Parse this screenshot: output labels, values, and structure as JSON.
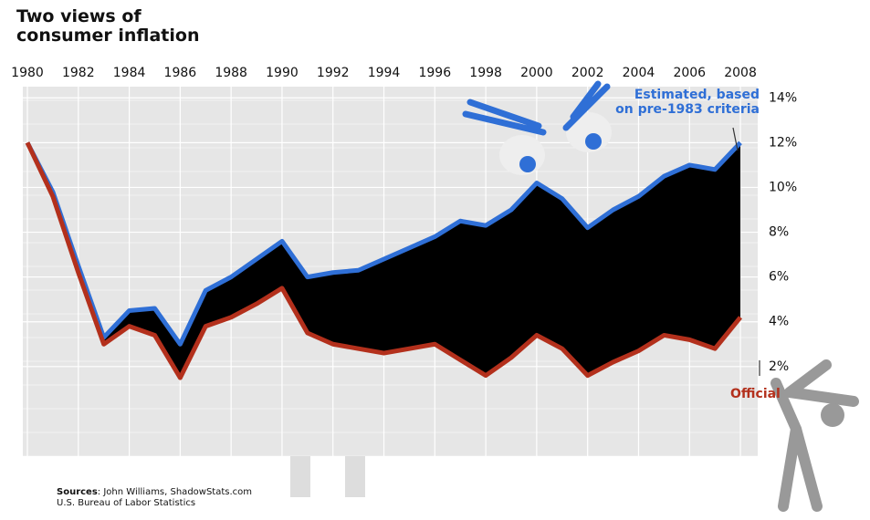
{
  "chart_data": {
    "type": "line",
    "title": "Two views of consumer inflation",
    "x": [
      1980,
      1981,
      1982,
      1983,
      1984,
      1985,
      1986,
      1987,
      1988,
      1989,
      1990,
      1991,
      1992,
      1993,
      1994,
      1995,
      1996,
      1997,
      1998,
      1999,
      2000,
      2001,
      2002,
      2003,
      2004,
      2005,
      2006,
      2007,
      2008
    ],
    "series": [
      {
        "name": "Estimated, based on pre-1983 criteria",
        "color": "#2f6fd6",
        "values": [
          12.0,
          9.8,
          6.5,
          3.3,
          4.5,
          4.6,
          3.0,
          5.4,
          6.0,
          6.8,
          7.6,
          6.0,
          6.2,
          6.3,
          6.8,
          7.3,
          7.8,
          8.5,
          8.3,
          9.0,
          10.2,
          9.5,
          8.2,
          9.0,
          9.6,
          10.5,
          11.0,
          10.8,
          12.0
        ]
      },
      {
        "name": "Official",
        "color": "#b3301c",
        "values": [
          12.0,
          9.6,
          6.2,
          3.0,
          3.8,
          3.4,
          1.5,
          3.8,
          4.2,
          4.8,
          5.5,
          3.5,
          3.0,
          2.8,
          2.6,
          2.8,
          3.0,
          2.3,
          1.6,
          2.4,
          3.4,
          2.8,
          1.6,
          2.2,
          2.7,
          3.4,
          3.2,
          2.8,
          4.2
        ]
      }
    ],
    "fill_between": "#000000",
    "xlim": [
      1980,
      2008.5
    ],
    "xticks": [
      1980,
      1982,
      1984,
      1986,
      1988,
      1990,
      1992,
      1994,
      1996,
      1998,
      2000,
      2002,
      2004,
      2006,
      2008
    ],
    "ylim": [
      -2,
      14.5
    ],
    "yticks": [
      {
        "value": 2,
        "label": "2%"
      },
      {
        "value": 4,
        "label": "4%"
      },
      {
        "value": 6,
        "label": "6%"
      },
      {
        "value": 8,
        "label": "8%"
      },
      {
        "value": 10,
        "label": "10%"
      },
      {
        "value": 12,
        "label": "12%"
      },
      {
        "value": 14,
        "label": "14%"
      }
    ],
    "grid": true,
    "sources_label": "Sources",
    "sources": [
      "John Williams, ShadowStats.com",
      "U.S. Bureau of Labor Statistics"
    ]
  }
}
